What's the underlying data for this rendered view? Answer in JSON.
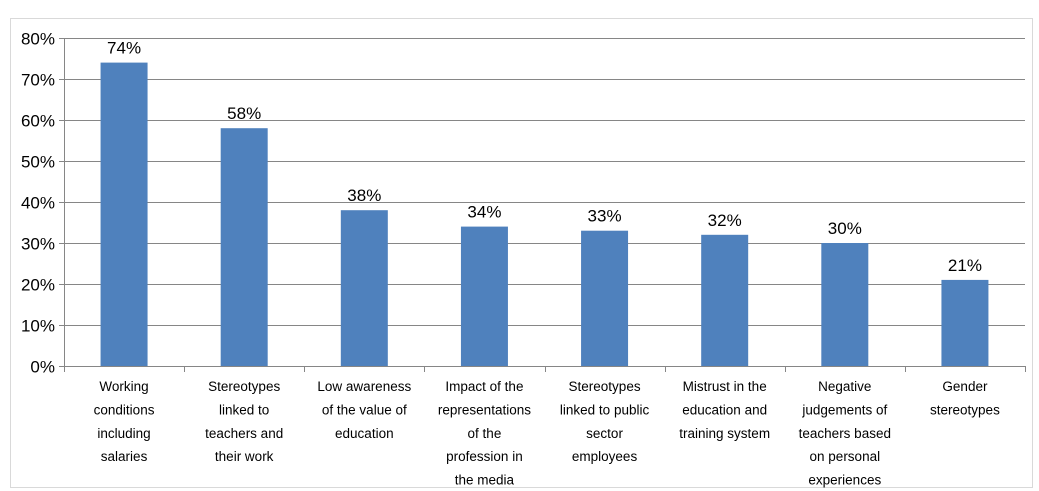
{
  "chart_data": {
    "type": "bar",
    "title": "",
    "xlabel": "",
    "ylabel": "",
    "categories": [
      [
        "Working",
        "conditions",
        "including",
        "salaries"
      ],
      [
        "Stereotypes",
        "linked to",
        "teachers and",
        "their work"
      ],
      [
        "Low awareness",
        "of the value of",
        "education"
      ],
      [
        "Impact of the",
        "representations",
        "of the",
        "profession in",
        "the media"
      ],
      [
        "Stereotypes",
        "linked to public",
        "sector",
        "employees"
      ],
      [
        "Mistrust in the",
        "education and",
        "training system"
      ],
      [
        "Negative",
        "judgements of",
        "teachers based",
        "on personal",
        "experiences"
      ],
      [
        "Gender",
        "stereotypes"
      ]
    ],
    "values": [
      74,
      58,
      38,
      34,
      33,
      32,
      30,
      21
    ],
    "data_labels": [
      "74%",
      "58%",
      "38%",
      "34%",
      "33%",
      "32%",
      "30%",
      "21%"
    ],
    "ylim": [
      0,
      80
    ],
    "yticks": [
      0,
      10,
      20,
      30,
      40,
      50,
      60,
      70,
      80
    ],
    "ytick_labels": [
      "0%",
      "10%",
      "20%",
      "30%",
      "40%",
      "50%",
      "60%",
      "70%",
      "80%"
    ],
    "grid": true,
    "legend": false,
    "colors": {
      "bar": "#4f81bd",
      "grid": "#868686",
      "axis": "#868686",
      "frame": "#d9d9d9"
    }
  }
}
